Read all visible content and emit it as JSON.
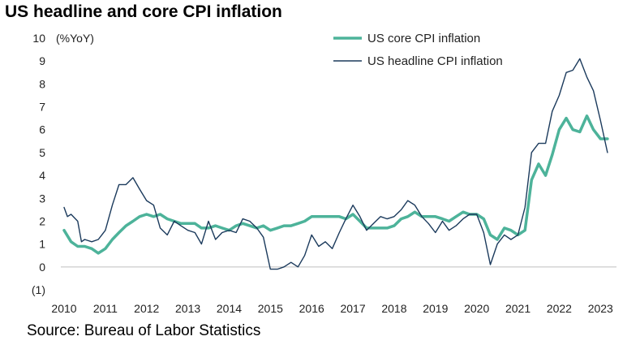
{
  "title": "US headline and core CPI inflation",
  "source": "Source: Bureau of Labor Statistics",
  "chart_data": {
    "type": "line",
    "title": "US headline and core CPI inflation",
    "ylabel": "(%YoY)",
    "ylim": [
      -1,
      10
    ],
    "xlim": [
      2010,
      2023.25
    ],
    "y_ticks": [
      {
        "v": 10,
        "label": "10"
      },
      {
        "v": 9,
        "label": "9"
      },
      {
        "v": 8,
        "label": "8"
      },
      {
        "v": 7,
        "label": "7"
      },
      {
        "v": 6,
        "label": "6"
      },
      {
        "v": 5,
        "label": "5"
      },
      {
        "v": 4,
        "label": "4"
      },
      {
        "v": 3,
        "label": "3"
      },
      {
        "v": 2,
        "label": "2"
      },
      {
        "v": 1,
        "label": "1"
      },
      {
        "v": 0,
        "label": "0"
      },
      {
        "v": -1,
        "label": "(1)"
      }
    ],
    "x_ticks": [
      "2010",
      "2011",
      "2012",
      "2013",
      "2014",
      "2015",
      "2016",
      "2017",
      "2018",
      "2019",
      "2020",
      "2021",
      "2022",
      "2023"
    ],
    "grid": false,
    "legend_position": "top-right",
    "series": [
      {
        "name": "US core CPI inflation",
        "color": "#4db39a",
        "points": [
          [
            2010.0,
            1.6
          ],
          [
            2010.17,
            1.1
          ],
          [
            2010.33,
            0.9
          ],
          [
            2010.5,
            0.9
          ],
          [
            2010.67,
            0.8
          ],
          [
            2010.83,
            0.6
          ],
          [
            2011.0,
            0.8
          ],
          [
            2011.17,
            1.2
          ],
          [
            2011.33,
            1.5
          ],
          [
            2011.5,
            1.8
          ],
          [
            2011.67,
            2.0
          ],
          [
            2011.83,
            2.2
          ],
          [
            2012.0,
            2.3
          ],
          [
            2012.17,
            2.2
          ],
          [
            2012.33,
            2.3
          ],
          [
            2012.5,
            2.1
          ],
          [
            2012.67,
            2.0
          ],
          [
            2012.83,
            1.9
          ],
          [
            2013.0,
            1.9
          ],
          [
            2013.17,
            1.9
          ],
          [
            2013.33,
            1.7
          ],
          [
            2013.5,
            1.7
          ],
          [
            2013.67,
            1.8
          ],
          [
            2013.83,
            1.7
          ],
          [
            2014.0,
            1.6
          ],
          [
            2014.17,
            1.8
          ],
          [
            2014.33,
            1.9
          ],
          [
            2014.5,
            1.8
          ],
          [
            2014.67,
            1.7
          ],
          [
            2014.83,
            1.8
          ],
          [
            2015.0,
            1.6
          ],
          [
            2015.17,
            1.7
          ],
          [
            2015.33,
            1.8
          ],
          [
            2015.5,
            1.8
          ],
          [
            2015.67,
            1.9
          ],
          [
            2015.83,
            2.0
          ],
          [
            2016.0,
            2.2
          ],
          [
            2016.17,
            2.2
          ],
          [
            2016.33,
            2.2
          ],
          [
            2016.5,
            2.2
          ],
          [
            2016.67,
            2.2
          ],
          [
            2016.83,
            2.1
          ],
          [
            2017.0,
            2.3
          ],
          [
            2017.17,
            2.0
          ],
          [
            2017.33,
            1.7
          ],
          [
            2017.5,
            1.7
          ],
          [
            2017.67,
            1.7
          ],
          [
            2017.83,
            1.7
          ],
          [
            2018.0,
            1.8
          ],
          [
            2018.17,
            2.1
          ],
          [
            2018.33,
            2.2
          ],
          [
            2018.5,
            2.4
          ],
          [
            2018.67,
            2.2
          ],
          [
            2018.83,
            2.2
          ],
          [
            2019.0,
            2.2
          ],
          [
            2019.17,
            2.1
          ],
          [
            2019.33,
            2.0
          ],
          [
            2019.5,
            2.2
          ],
          [
            2019.67,
            2.4
          ],
          [
            2019.83,
            2.3
          ],
          [
            2020.0,
            2.3
          ],
          [
            2020.17,
            2.1
          ],
          [
            2020.33,
            1.4
          ],
          [
            2020.5,
            1.2
          ],
          [
            2020.67,
            1.7
          ],
          [
            2020.83,
            1.6
          ],
          [
            2021.0,
            1.4
          ],
          [
            2021.17,
            1.6
          ],
          [
            2021.33,
            3.8
          ],
          [
            2021.5,
            4.5
          ],
          [
            2021.67,
            4.0
          ],
          [
            2021.83,
            4.9
          ],
          [
            2022.0,
            6.0
          ],
          [
            2022.17,
            6.5
          ],
          [
            2022.33,
            6.0
          ],
          [
            2022.5,
            5.9
          ],
          [
            2022.67,
            6.6
          ],
          [
            2022.83,
            6.0
          ],
          [
            2023.0,
            5.6
          ],
          [
            2023.17,
            5.6
          ]
        ]
      },
      {
        "name": "US headline CPI inflation",
        "color": "#1b3a5c",
        "points": [
          [
            2010.0,
            2.6
          ],
          [
            2010.08,
            2.2
          ],
          [
            2010.17,
            2.3
          ],
          [
            2010.33,
            2.0
          ],
          [
            2010.42,
            1.1
          ],
          [
            2010.5,
            1.2
          ],
          [
            2010.67,
            1.1
          ],
          [
            2010.83,
            1.2
          ],
          [
            2011.0,
            1.6
          ],
          [
            2011.17,
            2.7
          ],
          [
            2011.33,
            3.6
          ],
          [
            2011.5,
            3.6
          ],
          [
            2011.67,
            3.9
          ],
          [
            2011.83,
            3.4
          ],
          [
            2012.0,
            2.9
          ],
          [
            2012.17,
            2.7
          ],
          [
            2012.33,
            1.7
          ],
          [
            2012.5,
            1.4
          ],
          [
            2012.67,
            2.0
          ],
          [
            2012.83,
            1.8
          ],
          [
            2013.0,
            1.6
          ],
          [
            2013.17,
            1.5
          ],
          [
            2013.33,
            1.0
          ],
          [
            2013.5,
            2.0
          ],
          [
            2013.67,
            1.2
          ],
          [
            2013.83,
            1.5
          ],
          [
            2014.0,
            1.6
          ],
          [
            2014.17,
            1.5
          ],
          [
            2014.33,
            2.1
          ],
          [
            2014.5,
            2.0
          ],
          [
            2014.67,
            1.7
          ],
          [
            2014.83,
            1.3
          ],
          [
            2015.0,
            -0.1
          ],
          [
            2015.17,
            -0.1
          ],
          [
            2015.33,
            0.0
          ],
          [
            2015.5,
            0.2
          ],
          [
            2015.67,
            0.0
          ],
          [
            2015.83,
            0.5
          ],
          [
            2016.0,
            1.4
          ],
          [
            2016.17,
            0.9
          ],
          [
            2016.33,
            1.1
          ],
          [
            2016.5,
            0.8
          ],
          [
            2016.67,
            1.5
          ],
          [
            2016.83,
            2.1
          ],
          [
            2017.0,
            2.7
          ],
          [
            2017.17,
            2.2
          ],
          [
            2017.33,
            1.6
          ],
          [
            2017.5,
            1.9
          ],
          [
            2017.67,
            2.2
          ],
          [
            2017.83,
            2.1
          ],
          [
            2018.0,
            2.2
          ],
          [
            2018.17,
            2.5
          ],
          [
            2018.33,
            2.9
          ],
          [
            2018.5,
            2.7
          ],
          [
            2018.67,
            2.2
          ],
          [
            2018.83,
            1.9
          ],
          [
            2019.0,
            1.5
          ],
          [
            2019.17,
            2.0
          ],
          [
            2019.33,
            1.6
          ],
          [
            2019.5,
            1.8
          ],
          [
            2019.67,
            2.1
          ],
          [
            2019.83,
            2.3
          ],
          [
            2020.0,
            2.3
          ],
          [
            2020.17,
            1.5
          ],
          [
            2020.33,
            0.1
          ],
          [
            2020.5,
            1.0
          ],
          [
            2020.67,
            1.4
          ],
          [
            2020.83,
            1.2
          ],
          [
            2021.0,
            1.4
          ],
          [
            2021.17,
            2.6
          ],
          [
            2021.33,
            5.0
          ],
          [
            2021.5,
            5.4
          ],
          [
            2021.67,
            5.4
          ],
          [
            2021.83,
            6.8
          ],
          [
            2022.0,
            7.5
          ],
          [
            2022.17,
            8.5
          ],
          [
            2022.33,
            8.6
          ],
          [
            2022.5,
            9.1
          ],
          [
            2022.67,
            8.3
          ],
          [
            2022.83,
            7.7
          ],
          [
            2023.0,
            6.4
          ],
          [
            2023.17,
            5.0
          ]
        ]
      }
    ]
  }
}
